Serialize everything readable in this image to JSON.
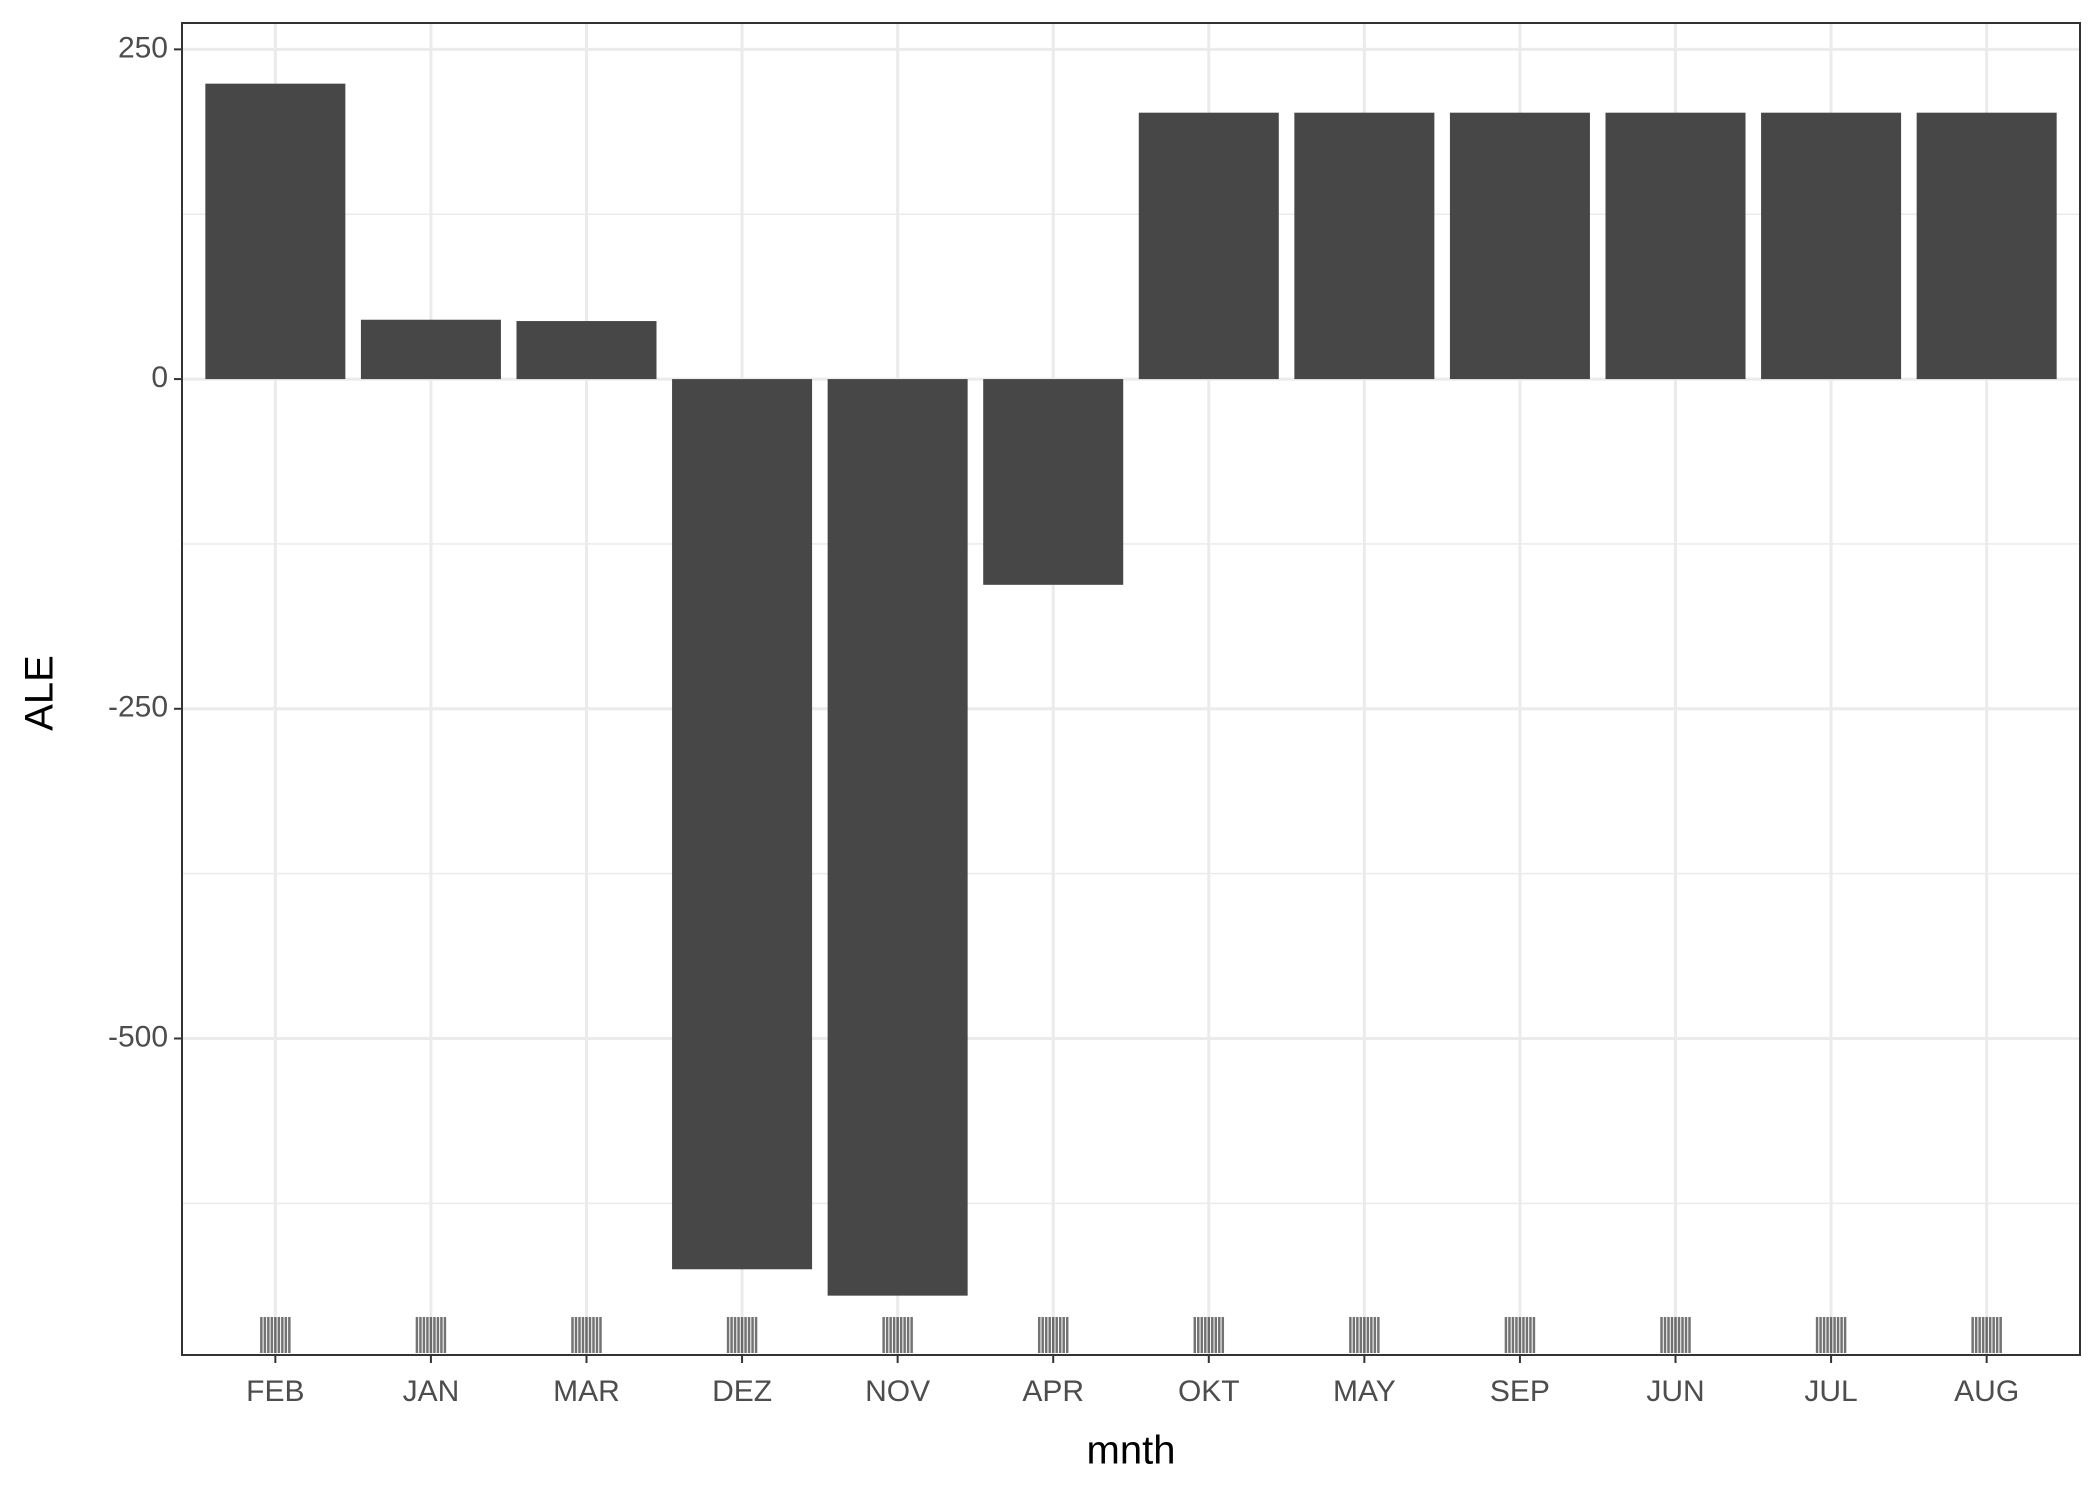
{
  "chart_data": {
    "type": "bar",
    "x_label": "mnth",
    "y_label": "ALE",
    "categories": [
      "FEB",
      "JAN",
      "MAR",
      "DEZ",
      "NOV",
      "APR",
      "OKT",
      "MAY",
      "SEP",
      "JUN",
      "JUL",
      "AUG"
    ],
    "values": [
      224,
      45,
      44,
      -675,
      -695,
      -156,
      202,
      202,
      202,
      202,
      202,
      202
    ],
    "color": "#474747",
    "ylim": [
      -740,
      270
    ],
    "yticks": [
      -500,
      -250,
      0,
      250
    ],
    "minor_yticks": [
      -625,
      -375,
      -125,
      125
    ],
    "grid": true
  }
}
